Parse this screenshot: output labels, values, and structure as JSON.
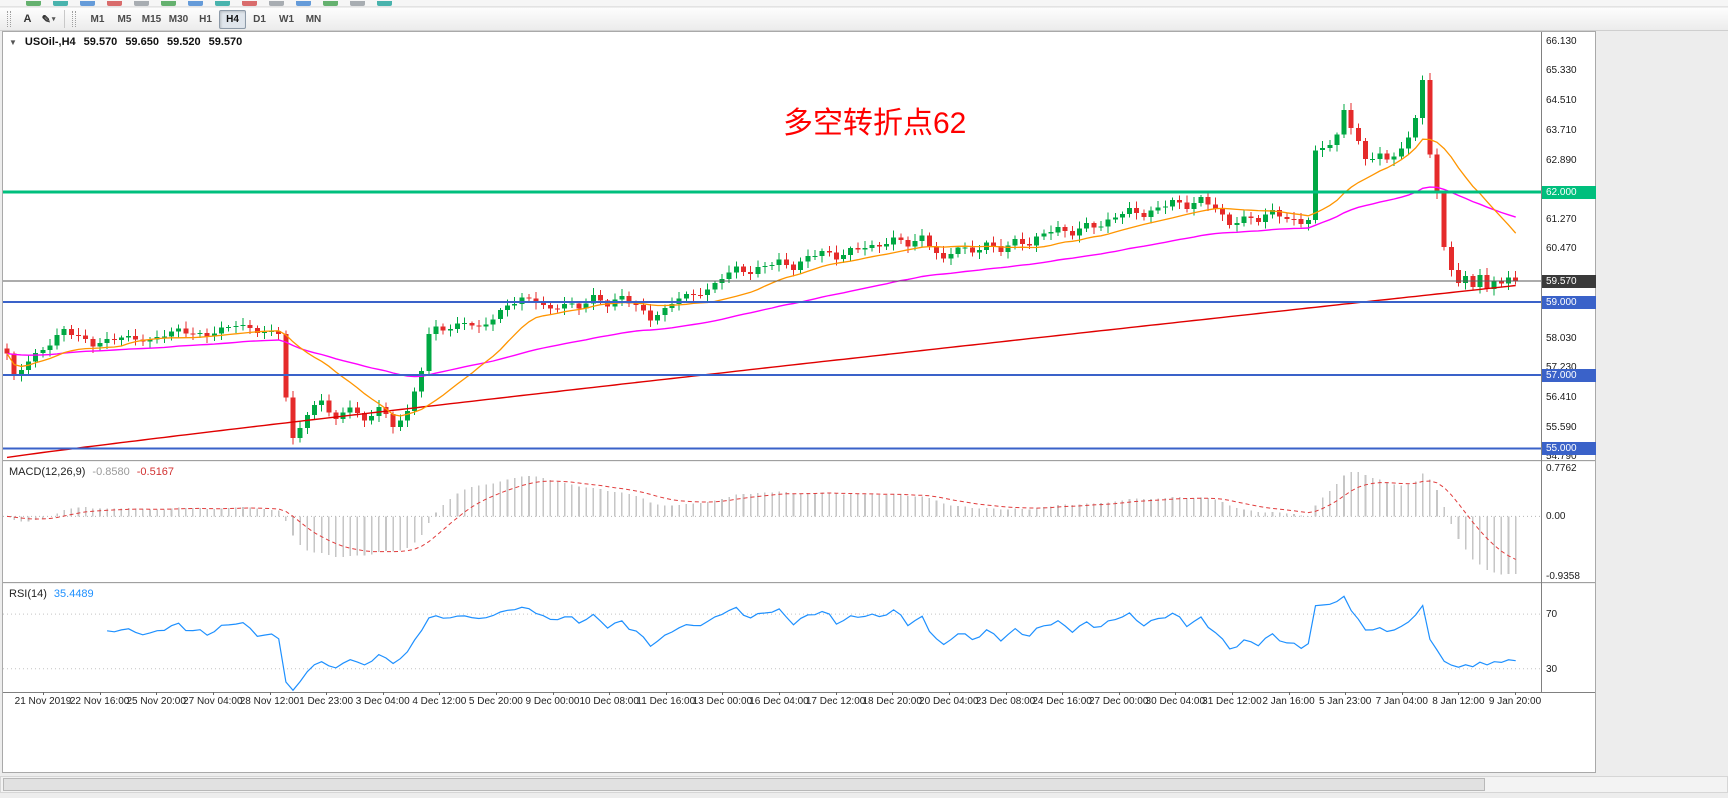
{
  "toolbar": {
    "text_tool_label": "A",
    "draw_tool_icon": "✎",
    "dropdown_caret": "▾",
    "timeframes": [
      "M1",
      "M5",
      "M15",
      "M30",
      "H1",
      "H4",
      "D1",
      "W1",
      "MN"
    ],
    "active_timeframe": "H4"
  },
  "top_icon_colors": [
    "#4ba457",
    "#2aa7a0",
    "#4b8bd4",
    "#d35454",
    "#9aa0a6",
    "#4ba457",
    "#4b8bd4",
    "#2aa7a0",
    "#d35454",
    "#9aa0a6",
    "#4b8bd4",
    "#4ba457",
    "#9aa0a6",
    "#2aa7a0"
  ],
  "chart": {
    "dropdown_icon": "▼",
    "symbol_label": "USOil-,H4",
    "open": "59.570",
    "high": "59.650",
    "low": "59.520",
    "close": "59.570",
    "annotation": "多空转折点62",
    "annotation_color": "#ff0000",
    "current_price": 59.57,
    "price_axis_labels": [
      "66.130",
      "65.330",
      "64.510",
      "63.710",
      "62.890",
      "61.270",
      "60.470",
      "58.030",
      "57.230",
      "56.410",
      "55.590",
      "54.790"
    ],
    "badges": [
      {
        "label": "62.000",
        "price": 62.0,
        "color": "#00bf7d"
      },
      {
        "label": "59.570",
        "price": 59.57,
        "color": "#3a3a3a"
      },
      {
        "label": "59.000",
        "price": 59.0,
        "color": "#3a62c9"
      },
      {
        "label": "57.000",
        "price": 57.0,
        "color": "#3a62c9"
      },
      {
        "label": "55.000",
        "price": 55.0,
        "color": "#3a62c9"
      }
    ],
    "hlines": [
      {
        "price": 62.0,
        "color": "#00bf7d",
        "width": 3
      },
      {
        "price": 59.0,
        "color": "#3a62c9",
        "width": 2
      },
      {
        "price": 57.0,
        "color": "#3a62c9",
        "width": 2
      },
      {
        "price": 55.0,
        "color": "#3a62c9",
        "width": 2
      }
    ],
    "candle_up_color": "#00a843",
    "candle_down_color": "#e52b2b"
  },
  "macd": {
    "label": "MACD(12,26,9)",
    "main_value": "-0.8580",
    "signal_value": "-0.5167",
    "axis_labels": [
      "0.7762",
      "0.00",
      "-0.9358"
    ],
    "range": [
      -0.9358,
      0.7762
    ],
    "histogram_color": "#c6c6c6",
    "signal_color": "#e03c3c"
  },
  "rsi": {
    "label": "RSI(14)",
    "value": "35.4489",
    "levels": [
      70,
      30
    ],
    "line_color": "#1e90ff",
    "range": [
      13,
      92
    ]
  },
  "time_axis": [
    "21 Nov 2019",
    "22 Nov 16:00",
    "25 Nov 20:00",
    "27 Nov 04:00",
    "28 Nov 12:00",
    "1 Dec 23:00",
    "3 Dec 04:00",
    "4 Dec 12:00",
    "5 Dec 20:00",
    "9 Dec 00:00",
    "10 Dec 08:00",
    "11 Dec 16:00",
    "13 Dec 00:00",
    "16 Dec 04:00",
    "17 Dec 12:00",
    "18 Dec 20:00",
    "20 Dec 04:00",
    "23 Dec 08:00",
    "24 Dec 16:00",
    "27 Dec 00:00",
    "30 Dec 04:00",
    "31 Dec 12:00",
    "2 Jan 16:00",
    "5 Jan 23:00",
    "7 Jan 04:00",
    "8 Jan 12:00",
    "9 Jan 20:00"
  ],
  "chart_data": {
    "type": "candlestick",
    "symbol": "USOil",
    "timeframe": "H4",
    "count": 212,
    "last_close": 59.57,
    "ylim": [
      54.68,
      66.38
    ],
    "anchors": [
      [
        0,
        57.55
      ],
      [
        1,
        56.9
      ],
      [
        3,
        57.4
      ],
      [
        6,
        57.9
      ],
      [
        8,
        58.25
      ],
      [
        12,
        57.8
      ],
      [
        16,
        58.1
      ],
      [
        20,
        57.9
      ],
      [
        24,
        58.25
      ],
      [
        28,
        58.1
      ],
      [
        32,
        58.35
      ],
      [
        36,
        58.2
      ],
      [
        38,
        58.2
      ],
      [
        39,
        56.4
      ],
      [
        40,
        55.2
      ],
      [
        42,
        55.9
      ],
      [
        44,
        56.3
      ],
      [
        46,
        55.8
      ],
      [
        48,
        56.2
      ],
      [
        50,
        55.7
      ],
      [
        52,
        56.1
      ],
      [
        54,
        55.6
      ],
      [
        56,
        56.0
      ],
      [
        57,
        56.6
      ],
      [
        58,
        57.2
      ],
      [
        59,
        58.1
      ],
      [
        60,
        58.3
      ],
      [
        62,
        58.2
      ],
      [
        64,
        58.45
      ],
      [
        66,
        58.3
      ],
      [
        68,
        58.6
      ],
      [
        70,
        58.9
      ],
      [
        72,
        59.05
      ],
      [
        74,
        59.0
      ],
      [
        76,
        58.8
      ],
      [
        78,
        59.0
      ],
      [
        80,
        58.85
      ],
      [
        82,
        59.1
      ],
      [
        84,
        58.9
      ],
      [
        86,
        59.15
      ],
      [
        88,
        58.95
      ],
      [
        90,
        58.55
      ],
      [
        92,
        58.75
      ],
      [
        94,
        59.1
      ],
      [
        96,
        59.2
      ],
      [
        98,
        59.35
      ],
      [
        100,
        59.7
      ],
      [
        102,
        59.9
      ],
      [
        104,
        59.75
      ],
      [
        106,
        60.0
      ],
      [
        108,
        60.15
      ],
      [
        110,
        59.95
      ],
      [
        112,
        60.2
      ],
      [
        114,
        60.35
      ],
      [
        116,
        60.2
      ],
      [
        118,
        60.45
      ],
      [
        120,
        60.55
      ],
      [
        122,
        60.5
      ],
      [
        124,
        60.7
      ],
      [
        126,
        60.55
      ],
      [
        128,
        60.8
      ],
      [
        130,
        60.4
      ],
      [
        131,
        60.15
      ],
      [
        133,
        60.5
      ],
      [
        135,
        60.3
      ],
      [
        137,
        60.6
      ],
      [
        139,
        60.45
      ],
      [
        141,
        60.7
      ],
      [
        143,
        60.55
      ],
      [
        145,
        60.85
      ],
      [
        147,
        61.0
      ],
      [
        149,
        60.9
      ],
      [
        151,
        61.15
      ],
      [
        153,
        61.05
      ],
      [
        155,
        61.3
      ],
      [
        157,
        61.5
      ],
      [
        159,
        61.4
      ],
      [
        161,
        61.6
      ],
      [
        163,
        61.75
      ],
      [
        165,
        61.55
      ],
      [
        167,
        61.8
      ],
      [
        169,
        61.6
      ],
      [
        171,
        61.15
      ],
      [
        173,
        61.3
      ],
      [
        175,
        61.2
      ],
      [
        177,
        61.45
      ],
      [
        179,
        61.3
      ],
      [
        181,
        61.2
      ],
      [
        182,
        61.3
      ],
      [
        183,
        63.1
      ],
      [
        185,
        63.3
      ],
      [
        186,
        63.5
      ],
      [
        187,
        64.2
      ],
      [
        188,
        63.8
      ],
      [
        189,
        63.4
      ],
      [
        190,
        62.9
      ],
      [
        192,
        63.1
      ],
      [
        193,
        62.85
      ],
      [
        194,
        63.0
      ],
      [
        196,
        63.4
      ],
      [
        197,
        64.0
      ],
      [
        198,
        65.1
      ],
      [
        199,
        63.0
      ],
      [
        200,
        62.0
      ],
      [
        201,
        60.6
      ],
      [
        202,
        59.9
      ],
      [
        203,
        59.5
      ],
      [
        204,
        59.75
      ],
      [
        205,
        59.4
      ],
      [
        206,
        59.65
      ],
      [
        207,
        59.35
      ],
      [
        208,
        59.6
      ],
      [
        209,
        59.45
      ],
      [
        210,
        59.7
      ],
      [
        211,
        59.57
      ]
    ],
    "moving_averages": [
      {
        "name": "fast-ma",
        "color": "#ff9500",
        "period": 16
      },
      {
        "name": "medium-ma",
        "color": "#ff00ff",
        "period": 55
      },
      {
        "name": "slow-ma",
        "color": "#e00000"
      }
    ]
  }
}
